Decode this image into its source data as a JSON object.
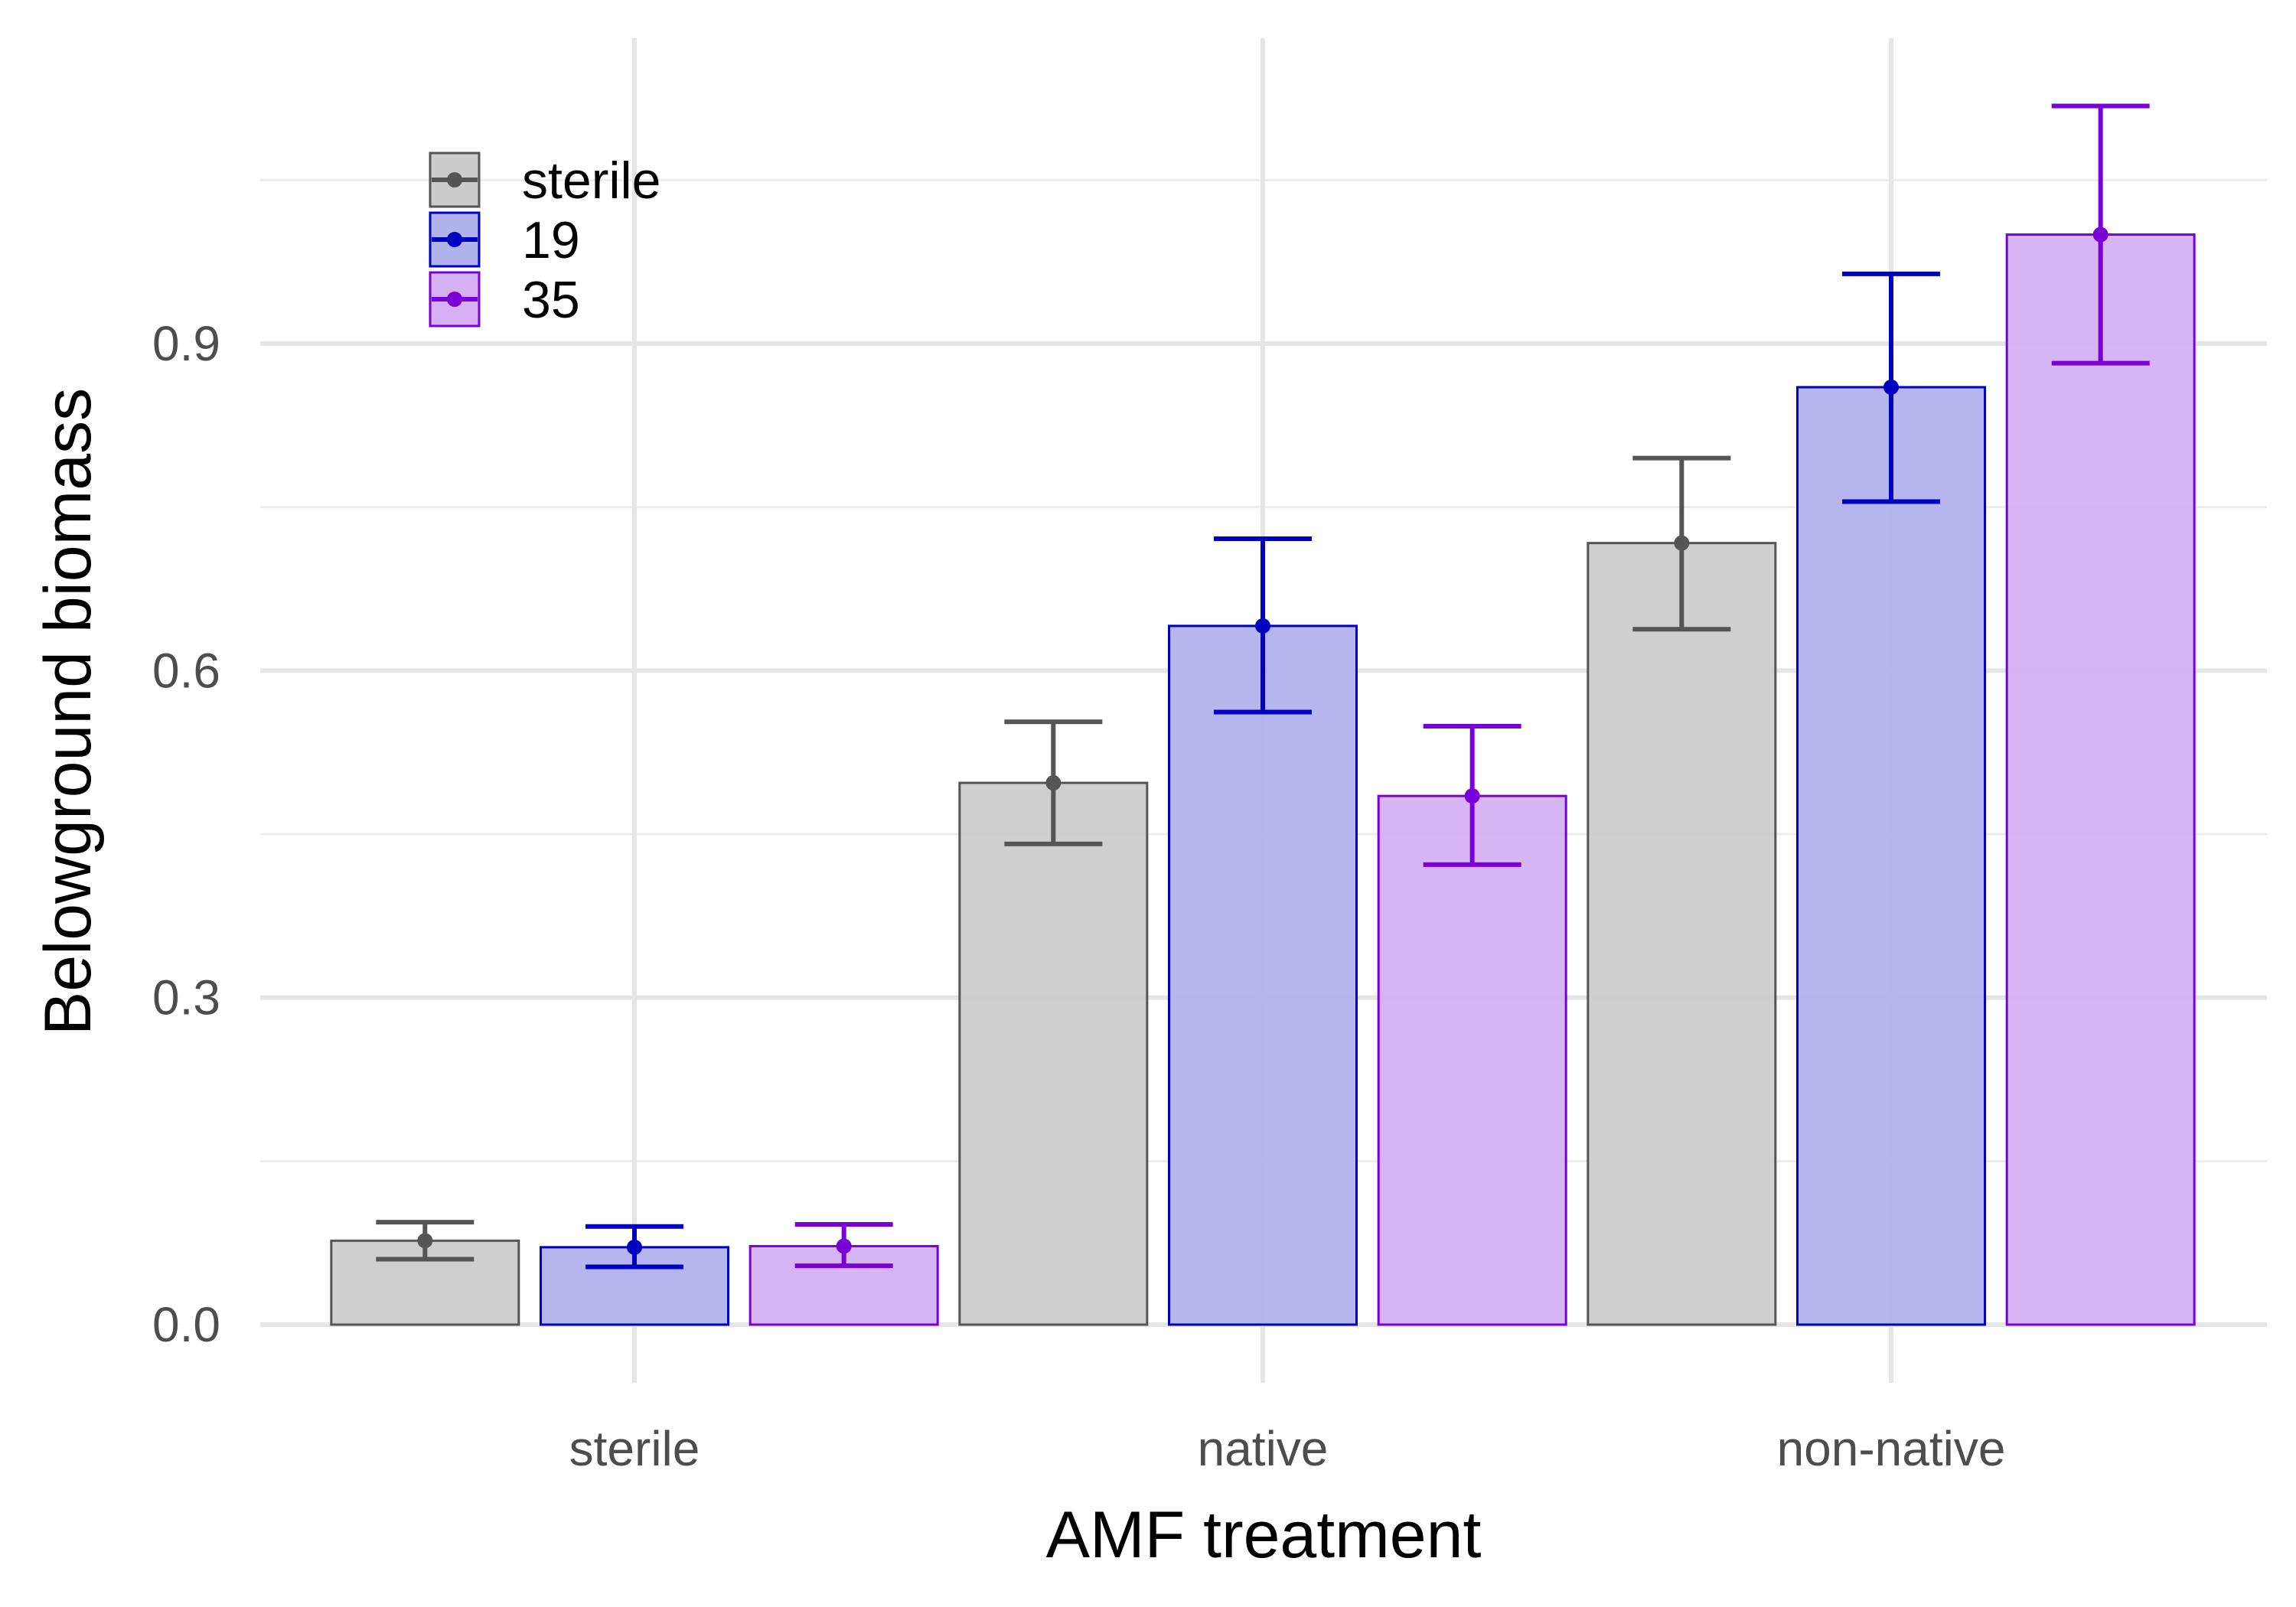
{
  "chart_data": {
    "type": "bar",
    "xlabel": "AMF treatment",
    "ylabel": "Belowground biomass",
    "categories": [
      "sterile",
      "native",
      "non-native"
    ],
    "ylim": [
      -0.045,
      1.18
    ],
    "yticks": [
      0.0,
      0.3,
      0.6,
      0.9
    ],
    "ytick_labels": [
      "0.0",
      "0.3",
      "0.6",
      "0.9"
    ],
    "grid": true,
    "legend_position": "top-left",
    "series": [
      {
        "name": "sterile",
        "color": "#555555",
        "fill": "#cccccc",
        "values": [
          0.077,
          0.497,
          0.717
        ],
        "lower": [
          0.06,
          0.441,
          0.638
        ],
        "upper": [
          0.094,
          0.553,
          0.795
        ]
      },
      {
        "name": "19",
        "color": "#0000c0",
        "fill": "#b0b2ec",
        "values": [
          0.071,
          0.641,
          0.86
        ],
        "lower": [
          0.053,
          0.562,
          0.755
        ],
        "upper": [
          0.09,
          0.721,
          0.964
        ]
      },
      {
        "name": "35",
        "color": "#7a00d8",
        "fill": "#d5b0f3",
        "values": [
          0.072,
          0.485,
          1.0
        ],
        "lower": [
          0.054,
          0.422,
          0.882
        ],
        "upper": [
          0.092,
          0.549,
          1.118
        ]
      }
    ]
  }
}
